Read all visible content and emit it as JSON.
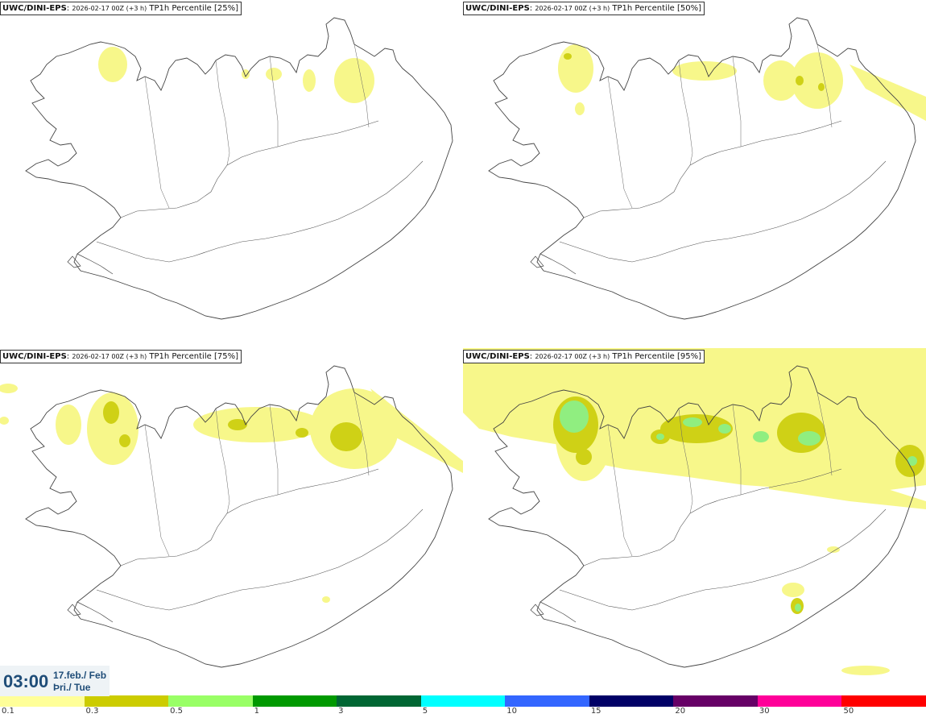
{
  "panels": [
    {
      "model": "UWC/DINI-EPS",
      "run": "2026-02-17 00Z (+3 h)",
      "param": "TP1h Percentile [25%]",
      "percentile": 25
    },
    {
      "model": "UWC/DINI-EPS",
      "run": "2026-02-17 00Z (+3 h)",
      "param": "TP1h Percentile [50%]",
      "percentile": 50
    },
    {
      "model": "UWC/DINI-EPS",
      "run": "2026-02-17 00Z (+3 h)",
      "param": "TP1h Percentile [75%]",
      "percentile": 75
    },
    {
      "model": "UWC/DINI-EPS",
      "run": "2026-02-17 00Z (+3 h)",
      "param": "TP1h Percentile [95%]",
      "percentile": 95
    }
  ],
  "valid_time": {
    "time": "03:00",
    "date": "17.feb./ Feb",
    "weekday": "Þri./ Tue"
  },
  "legend": {
    "thresholds": [
      "0.1",
      "0.3",
      "0.5",
      "1",
      "3",
      "5",
      "10",
      "15",
      "20",
      "30",
      "50"
    ],
    "colors": [
      "#ffff99",
      "#cccc00",
      "#99ff66",
      "#009900",
      "#006633",
      "#00ffff",
      "#3366ff",
      "#000066",
      "#660066",
      "#ff0099",
      "#ff0000"
    ]
  },
  "precip_colors": {
    "light": "#f7f78a",
    "medium": "#cfd116",
    "heavy": "#90ee80"
  }
}
